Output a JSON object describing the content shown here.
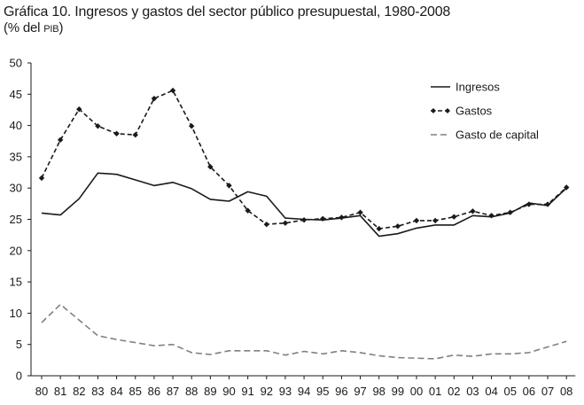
{
  "chart_data": {
    "type": "line",
    "title": "Gráfica 10. Ingresos y gastos del sector público presupuestal, 1980-2008",
    "subtitle": "(% del PIB)",
    "categories": [
      "80",
      "81",
      "82",
      "83",
      "84",
      "85",
      "86",
      "87",
      "88",
      "89",
      "90",
      "91",
      "92",
      "93",
      "94",
      "95",
      "96",
      "97",
      "98",
      "99",
      "00",
      "01",
      "02",
      "03",
      "04",
      "05",
      "06",
      "07",
      "08"
    ],
    "ylim": [
      0,
      50
    ],
    "yticks": [
      0,
      5,
      10,
      15,
      20,
      25,
      30,
      35,
      40,
      45,
      50
    ],
    "grid": false,
    "legend_position": "top-right",
    "series": [
      {
        "name": "Ingresos",
        "style": "solid",
        "color": "#1a1a1a",
        "values": [
          26.0,
          25.7,
          28.3,
          32.4,
          32.2,
          31.3,
          30.4,
          30.9,
          29.9,
          28.2,
          27.9,
          29.4,
          28.7,
          25.2,
          25.0,
          24.9,
          25.2,
          25.6,
          22.3,
          22.7,
          23.6,
          24.1,
          24.1,
          25.6,
          25.4,
          26.0,
          27.6,
          27.2,
          30.0
        ]
      },
      {
        "name": "Gastos",
        "style": "dashed-markers",
        "color": "#1a1a1a",
        "values": [
          31.6,
          37.7,
          42.6,
          39.9,
          38.7,
          38.5,
          44.3,
          45.6,
          39.9,
          33.4,
          30.4,
          26.4,
          24.2,
          24.4,
          24.9,
          25.1,
          25.3,
          26.1,
          23.5,
          23.9,
          24.8,
          24.8,
          25.4,
          26.3,
          25.6,
          26.1,
          27.4,
          27.4,
          30.1
        ]
      },
      {
        "name": "Gasto de capital",
        "style": "dashed",
        "color": "#808080",
        "values": [
          8.5,
          11.4,
          8.9,
          6.4,
          5.8,
          5.3,
          4.8,
          5.0,
          3.7,
          3.4,
          4.0,
          4.0,
          4.0,
          3.3,
          3.9,
          3.5,
          4.0,
          3.7,
          3.2,
          2.9,
          2.8,
          2.7,
          3.3,
          3.1,
          3.5,
          3.5,
          3.7,
          4.6,
          5.5
        ]
      }
    ]
  }
}
